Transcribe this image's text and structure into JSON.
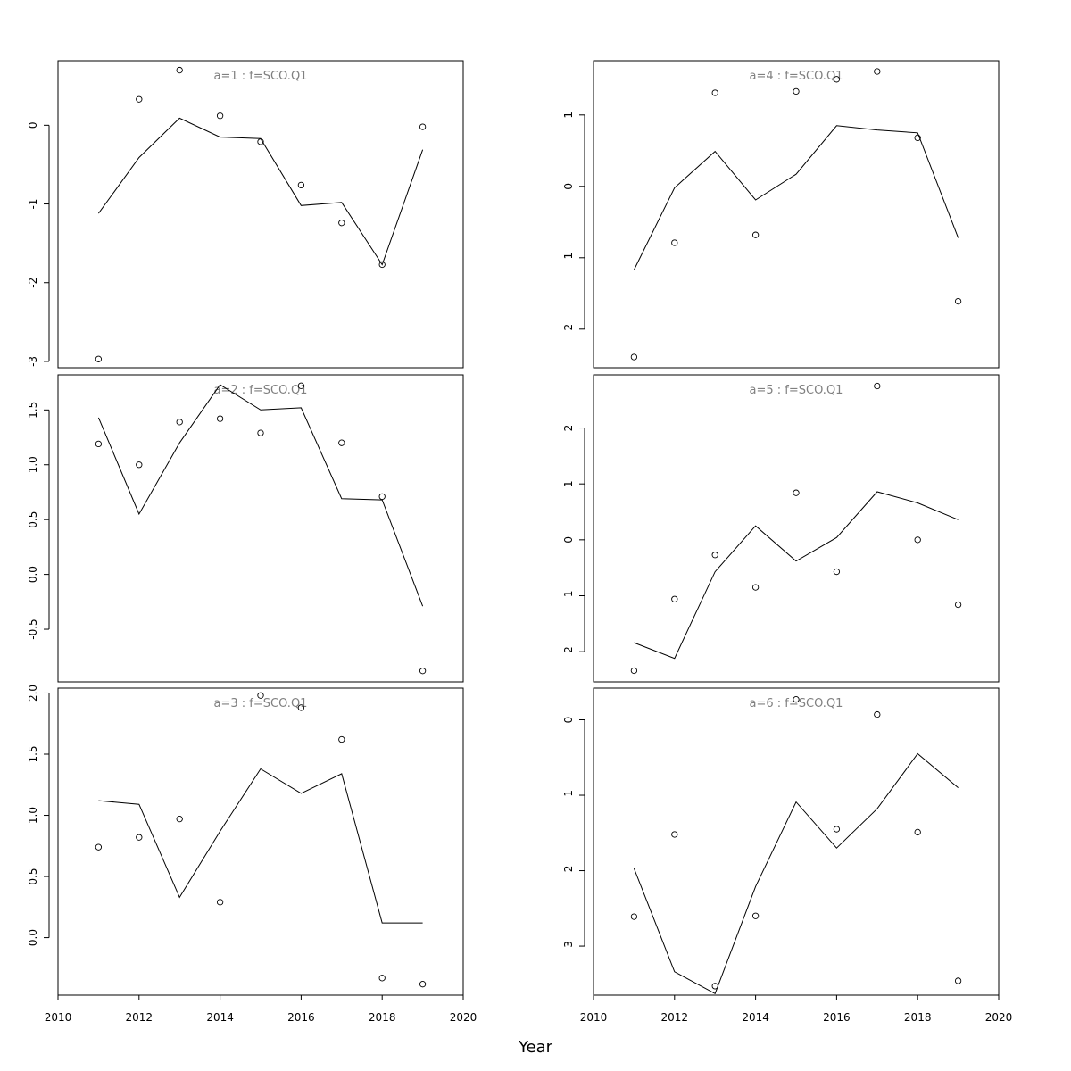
{
  "chart_data": {
    "type": "line",
    "xlabel": "Year",
    "xlim": [
      2010,
      2020
    ],
    "x_ticks": [
      2010,
      2012,
      2014,
      2016,
      2018,
      2020
    ],
    "panels": [
      {
        "title": "a=1 : f=SCO.Q1",
        "x": [
          2011,
          2012,
          2013,
          2014,
          2015,
          2016,
          2017,
          2018,
          2019
        ],
        "observed": [
          -2.97,
          0.33,
          0.7,
          0.12,
          -0.21,
          -0.76,
          -1.24,
          -1.77,
          -0.02
        ],
        "fitted": [
          -1.12,
          -0.41,
          0.09,
          -0.15,
          -0.17,
          -1.02,
          -0.98,
          -1.77,
          -0.31
        ],
        "ylim": [
          -3.08,
          0.82
        ],
        "y_ticks": [
          -3,
          -2,
          -1,
          0
        ],
        "y_tick_labels": [
          "-3",
          "-2",
          "-1",
          "0"
        ]
      },
      {
        "title": "a=2 : f=SCO.Q1",
        "x": [
          2011,
          2012,
          2013,
          2014,
          2015,
          2016,
          2017,
          2018,
          2019
        ],
        "observed": [
          1.19,
          1.0,
          1.39,
          1.42,
          1.29,
          1.72,
          1.2,
          0.71,
          -0.88
        ],
        "fitted": [
          1.43,
          0.55,
          1.2,
          1.73,
          1.5,
          1.52,
          0.69,
          0.68,
          -0.29
        ],
        "ylim": [
          -0.98,
          1.82
        ],
        "y_ticks": [
          -0.5,
          0.0,
          0.5,
          1.0,
          1.5
        ],
        "y_tick_labels": [
          "-0.5",
          "0.0",
          "0.5",
          "1.0",
          "1.5"
        ]
      },
      {
        "title": "a=3 : f=SCO.Q1",
        "x": [
          2011,
          2012,
          2013,
          2014,
          2015,
          2016,
          2017,
          2018,
          2019
        ],
        "observed": [
          0.74,
          0.82,
          0.97,
          0.29,
          1.98,
          1.88,
          1.62,
          -0.33,
          -0.38
        ],
        "fitted": [
          1.12,
          1.09,
          0.33,
          0.87,
          1.38,
          1.18,
          1.34,
          0.12,
          0.12
        ],
        "ylim": [
          -0.47,
          2.04
        ],
        "y_ticks": [
          0.0,
          0.5,
          1.0,
          1.5,
          2.0
        ],
        "y_tick_labels": [
          "0.0",
          "0.5",
          "1.0",
          "1.5",
          "2.0"
        ]
      },
      {
        "title": "a=4 : f=SCO.Q1",
        "x": [
          2011,
          2012,
          2013,
          2014,
          2015,
          2016,
          2017,
          2018,
          2019
        ],
        "observed": [
          -2.39,
          -0.79,
          1.31,
          -0.68,
          1.33,
          1.5,
          1.61,
          0.68,
          -1.61
        ],
        "fitted": [
          -1.17,
          -0.02,
          0.49,
          -0.19,
          0.17,
          0.85,
          0.79,
          0.75,
          -0.72
        ],
        "ylim": [
          -2.54,
          1.76
        ],
        "y_ticks": [
          -2,
          -1,
          0,
          1
        ],
        "y_tick_labels": [
          "-2",
          "-1",
          "0",
          "1"
        ]
      },
      {
        "title": "a=5 : f=SCO.Q1",
        "x": [
          2011,
          2012,
          2013,
          2014,
          2015,
          2016,
          2017,
          2018,
          2019
        ],
        "observed": [
          -2.34,
          -1.06,
          -0.27,
          -0.85,
          0.84,
          -0.57,
          2.75,
          0.0,
          -1.16
        ],
        "fitted": [
          -1.84,
          -2.12,
          -0.57,
          0.25,
          -0.38,
          0.04,
          0.86,
          0.66,
          0.36
        ],
        "ylim": [
          -2.54,
          2.95
        ],
        "y_ticks": [
          -2,
          -1,
          0,
          1,
          2
        ],
        "y_tick_labels": [
          "-2",
          "-1",
          "0",
          "1",
          "2"
        ]
      },
      {
        "title": "a=6 : f=SCO.Q1",
        "x": [
          2011,
          2012,
          2013,
          2014,
          2015,
          2016,
          2017,
          2018,
          2019
        ],
        "observed": [
          -2.61,
          -1.52,
          -3.53,
          -2.6,
          0.27,
          -1.45,
          0.07,
          -1.49,
          -3.46
        ],
        "fitted": [
          -1.97,
          -3.34,
          -3.63,
          -2.21,
          -1.09,
          -1.7,
          -1.18,
          -0.45,
          -0.9
        ],
        "ylim": [
          -3.65,
          0.42
        ],
        "y_ticks": [
          -3,
          -2,
          -1,
          0
        ],
        "y_tick_labels": [
          "-3",
          "-2",
          "-1",
          "0"
        ]
      }
    ]
  }
}
